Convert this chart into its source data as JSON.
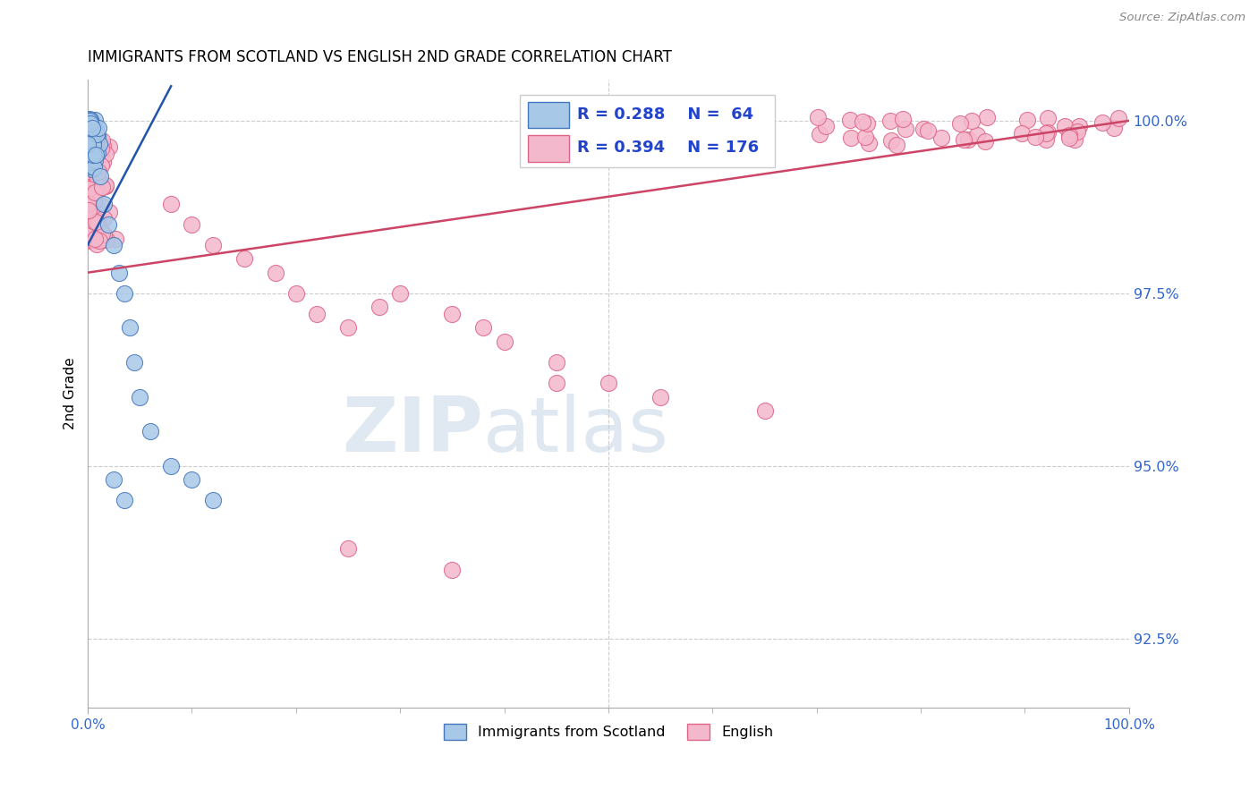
{
  "title": "IMMIGRANTS FROM SCOTLAND VS ENGLISH 2ND GRADE CORRELATION CHART",
  "source": "Source: ZipAtlas.com",
  "ylabel": "2nd Grade",
  "ytick_labels": [
    "92.5%",
    "95.0%",
    "97.5%",
    "100.0%"
  ],
  "ytick_values": [
    92.5,
    95.0,
    97.5,
    100.0
  ],
  "xmin": 0.0,
  "xmax": 100.0,
  "ymin": 91.5,
  "ymax": 100.6,
  "blue_R": 0.288,
  "blue_N": 64,
  "pink_R": 0.394,
  "pink_N": 176,
  "blue_fill": "#a8c8e8",
  "pink_fill": "#f4b8cc",
  "blue_edge": "#4477bb",
  "pink_edge": "#dd6688",
  "blue_line": "#2255aa",
  "pink_line": "#cc4466",
  "legend_color": "#2244cc",
  "watermark_zip": "ZIP",
  "watermark_atlas": "atlas",
  "seed": 7
}
